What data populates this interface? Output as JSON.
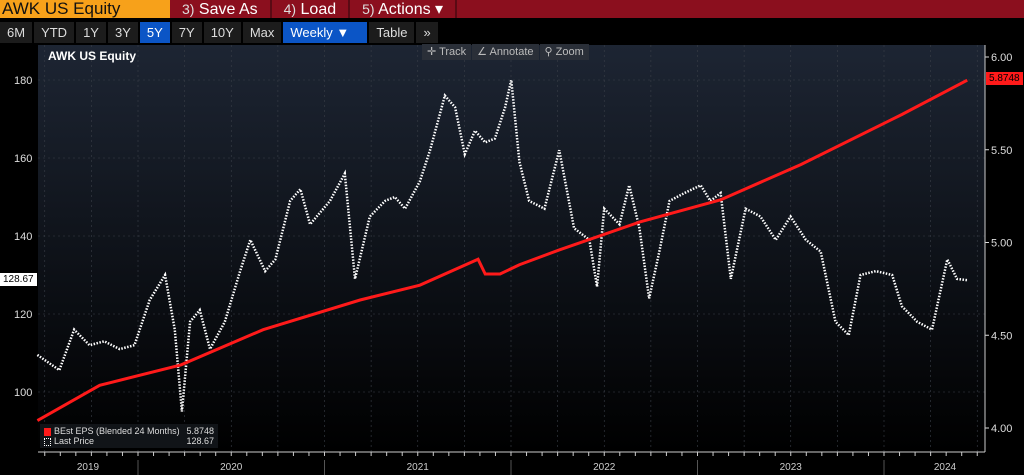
{
  "toolbar": {
    "title": "AWK US Equity",
    "buttons": [
      {
        "num": "3)",
        "label": "Save As"
      },
      {
        "num": "4)",
        "label": "Load"
      },
      {
        "num": "5)",
        "label": "Actions ▾"
      }
    ]
  },
  "ranges": [
    "6M",
    "YTD",
    "1Y",
    "3Y",
    "5Y",
    "7Y",
    "10Y",
    "Max"
  ],
  "selected_range": "5Y",
  "frequency": "Weekly ▼",
  "table_label": "Table",
  "more_label": "»",
  "chart_tools": [
    "✛ Track",
    "∠ Annotate",
    "⚲ Zoom"
  ],
  "colors": {
    "eps": "#ff1a1a",
    "price": "#ffffff",
    "accent": "#0b55c6",
    "title_bg": "#f7a11a",
    "bar_bg": "#8b0f1e"
  },
  "chart_data": {
    "type": "line",
    "title": "AWK US Equity",
    "x_ticks": [
      "2019",
      "2020",
      "2021",
      "2022",
      "2023",
      "2024"
    ],
    "left_axis": {
      "ticks": [
        100,
        120,
        140,
        160,
        180
      ],
      "range": [
        90,
        188
      ]
    },
    "right_axis": {
      "ticks": [
        "4.00",
        "4.50",
        "5.00",
        "5.50",
        "6.00"
      ],
      "range": [
        3.95,
        6.05
      ]
    },
    "grid": true,
    "legend_placement": "bottom-left",
    "series": [
      {
        "name": "BEst EPS (Blended 24 Months)",
        "axis": "right",
        "style": "solid red",
        "last": "5.8748",
        "points": [
          [
            "2019-06-18",
            4.04
          ],
          [
            "2019-10-18",
            4.23
          ],
          [
            "2020-03-25",
            4.34
          ],
          [
            "2020-09-02",
            4.53
          ],
          [
            "2021-03-11",
            4.69
          ],
          [
            "2021-07-06",
            4.77
          ],
          [
            "2021-10-28",
            4.91
          ],
          [
            "2021-11-11",
            4.83
          ],
          [
            "2021-12-10",
            4.83
          ],
          [
            "2022-01-17",
            4.88
          ],
          [
            "2022-04-05",
            4.96
          ],
          [
            "2022-09-09",
            5.11
          ],
          [
            "2023-02-15",
            5.23
          ],
          [
            "2023-07-22",
            5.42
          ],
          [
            "2024-02-05",
            5.69
          ],
          [
            "2024-06-12",
            5.8748
          ]
        ]
      },
      {
        "name": "Last Price",
        "axis": "left",
        "style": "dotted white",
        "last": "128.67",
        "points": [
          [
            "2019-06-18",
            109.5
          ],
          [
            "2019-07-31",
            105.6
          ],
          [
            "2019-08-29",
            116
          ],
          [
            "2019-09-28",
            112
          ],
          [
            "2019-10-27",
            113
          ],
          [
            "2019-11-26",
            111
          ],
          [
            "2019-12-25",
            112
          ],
          [
            "2020-01-24",
            123.6
          ],
          [
            "2020-02-23",
            130
          ],
          [
            "2020-03-13",
            116
          ],
          [
            "2020-03-27",
            95
          ],
          [
            "2020-04-12",
            118
          ],
          [
            "2020-05-01",
            121
          ],
          [
            "2020-05-21",
            111
          ],
          [
            "2020-06-19",
            118
          ],
          [
            "2020-07-19",
            131
          ],
          [
            "2020-08-08",
            139
          ],
          [
            "2020-09-06",
            131
          ],
          [
            "2020-09-26",
            134
          ],
          [
            "2020-10-25",
            149
          ],
          [
            "2020-11-14",
            152
          ],
          [
            "2020-12-03",
            143
          ],
          [
            "2021-01-11",
            149
          ],
          [
            "2021-02-09",
            156
          ],
          [
            "2021-03-01",
            129
          ],
          [
            "2021-03-30",
            145
          ],
          [
            "2021-04-29",
            149
          ],
          [
            "2021-05-18",
            150
          ],
          [
            "2021-06-07",
            147
          ],
          [
            "2021-07-06",
            154
          ],
          [
            "2021-07-26",
            162
          ],
          [
            "2021-08-24",
            176
          ],
          [
            "2021-09-13",
            173
          ],
          [
            "2021-10-02",
            161
          ],
          [
            "2021-10-22",
            167
          ],
          [
            "2021-11-11",
            164
          ],
          [
            "2021-11-30",
            165
          ],
          [
            "2021-12-20",
            173
          ],
          [
            "2022-01-01",
            180
          ],
          [
            "2022-01-17",
            159
          ],
          [
            "2022-02-05",
            149
          ],
          [
            "2022-03-07",
            147
          ],
          [
            "2022-04-05",
            162
          ],
          [
            "2022-05-04",
            142
          ],
          [
            "2022-06-03",
            139
          ],
          [
            "2022-06-18",
            127
          ],
          [
            "2022-07-02",
            147
          ],
          [
            "2022-08-01",
            143
          ],
          [
            "2022-08-20",
            153
          ],
          [
            "2022-09-09",
            142
          ],
          [
            "2022-09-28",
            124
          ],
          [
            "2022-10-18",
            136
          ],
          [
            "2022-11-07",
            149
          ],
          [
            "2022-12-06",
            151
          ],
          [
            "2023-01-07",
            153
          ],
          [
            "2023-01-26",
            149
          ],
          [
            "2023-02-15",
            151
          ],
          [
            "2023-03-07",
            129
          ],
          [
            "2023-04-05",
            147
          ],
          [
            "2023-05-04",
            145
          ],
          [
            "2023-06-03",
            139
          ],
          [
            "2023-07-02",
            145
          ],
          [
            "2023-08-01",
            139
          ],
          [
            "2023-08-30",
            136
          ],
          [
            "2023-09-28",
            118
          ],
          [
            "2023-10-24",
            114.6
          ],
          [
            "2023-11-16",
            130
          ],
          [
            "2023-12-16",
            131
          ],
          [
            "2024-01-17",
            130
          ],
          [
            "2024-02-05",
            122
          ],
          [
            "2024-03-06",
            118
          ],
          [
            "2024-04-04",
            116
          ],
          [
            "2024-05-04",
            134
          ],
          [
            "2024-05-23",
            129
          ],
          [
            "2024-06-12",
            128.67
          ]
        ]
      }
    ]
  }
}
